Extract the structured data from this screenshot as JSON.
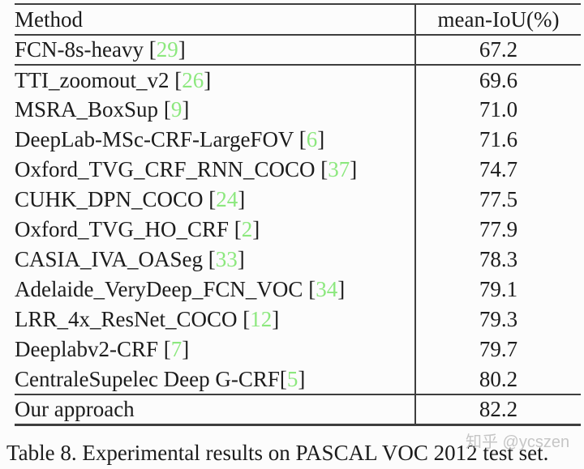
{
  "colors": {
    "citation_green": "#8ce87e",
    "text": "#1c1c1c",
    "rule_line": "#3e3e3e",
    "watermark_gray": "#c6c6c6",
    "background": "#fcfcfc"
  },
  "table": {
    "header": {
      "method": "Method",
      "metric": "mean-IoU(%)"
    },
    "rows": [
      {
        "method": "FCN-8s-heavy",
        "cite": "29",
        "space_before_cite": true,
        "value": "67.2",
        "bold": false,
        "rule_below": true
      },
      {
        "method": "TTI_zoomout_v2",
        "cite": "26",
        "space_before_cite": true,
        "value": "69.6",
        "bold": false,
        "rule_below": false
      },
      {
        "method": "MSRA_BoxSup",
        "cite": "9",
        "space_before_cite": true,
        "value": "71.0",
        "bold": false,
        "rule_below": false
      },
      {
        "method": "DeepLab-MSc-CRF-LargeFOV",
        "cite": "6",
        "space_before_cite": true,
        "value": "71.6",
        "bold": false,
        "rule_below": false
      },
      {
        "method": "Oxford_TVG_CRF_RNN_COCO",
        "cite": "37",
        "space_before_cite": true,
        "value": "74.7",
        "bold": false,
        "rule_below": false
      },
      {
        "method": "CUHK_DPN_COCO",
        "cite": "24",
        "space_before_cite": true,
        "value": "77.5",
        "bold": false,
        "rule_below": false
      },
      {
        "method": "Oxford_TVG_HO_CRF",
        "cite": "2",
        "space_before_cite": true,
        "value": "77.9",
        "bold": false,
        "rule_below": false
      },
      {
        "method": "CASIA_IVA_OASeg",
        "cite": "33",
        "space_before_cite": true,
        "value": "78.3",
        "bold": false,
        "rule_below": false
      },
      {
        "method": "Adelaide_VeryDeep_FCN_VOC",
        "cite": "34",
        "space_before_cite": true,
        "value": "79.1",
        "bold": false,
        "rule_below": false
      },
      {
        "method": "LRR_4x_ResNet_COCO",
        "cite": "12",
        "space_before_cite": true,
        "value": "79.3",
        "bold": false,
        "rule_below": false
      },
      {
        "method": "Deeplabv2-CRF",
        "cite": "7",
        "space_before_cite": true,
        "value": "79.7",
        "bold": false,
        "rule_below": false
      },
      {
        "method": "CentraleSupelec Deep G-CRF",
        "cite": "5",
        "space_before_cite": false,
        "value": "80.2",
        "bold": false,
        "rule_below": false
      },
      {
        "method": "Our approach",
        "cite": null,
        "space_before_cite": false,
        "value": "82.2",
        "bold": true,
        "rule_below": false
      }
    ]
  },
  "caption": "Table 8. Experimental results on PASCAL VOC 2012 test set.",
  "watermark": "知乎 @ycszen",
  "chart_data": {
    "type": "table",
    "title": "Table 8. Experimental results on PASCAL VOC 2012 test set.",
    "columns": [
      "Method",
      "mean-IoU(%)"
    ],
    "categories": [
      "FCN-8s-heavy [29]",
      "TTI_zoomout_v2 [26]",
      "MSRA_BoxSup [9]",
      "DeepLab-MSc-CRF-LargeFOV [6]",
      "Oxford_TVG_CRF_RNN_COCO [37]",
      "CUHK_DPN_COCO [24]",
      "Oxford_TVG_HO_CRF [2]",
      "CASIA_IVA_OASeg [33]",
      "Adelaide_VeryDeep_FCN_VOC [34]",
      "LRR_4x_ResNet_COCO [12]",
      "Deeplabv2-CRF [7]",
      "CentraleSupelec Deep G-CRF[5]",
      "Our approach"
    ],
    "values": [
      67.2,
      69.6,
      71.0,
      71.6,
      74.7,
      77.5,
      77.9,
      78.3,
      79.1,
      79.3,
      79.7,
      80.2,
      82.2
    ]
  }
}
